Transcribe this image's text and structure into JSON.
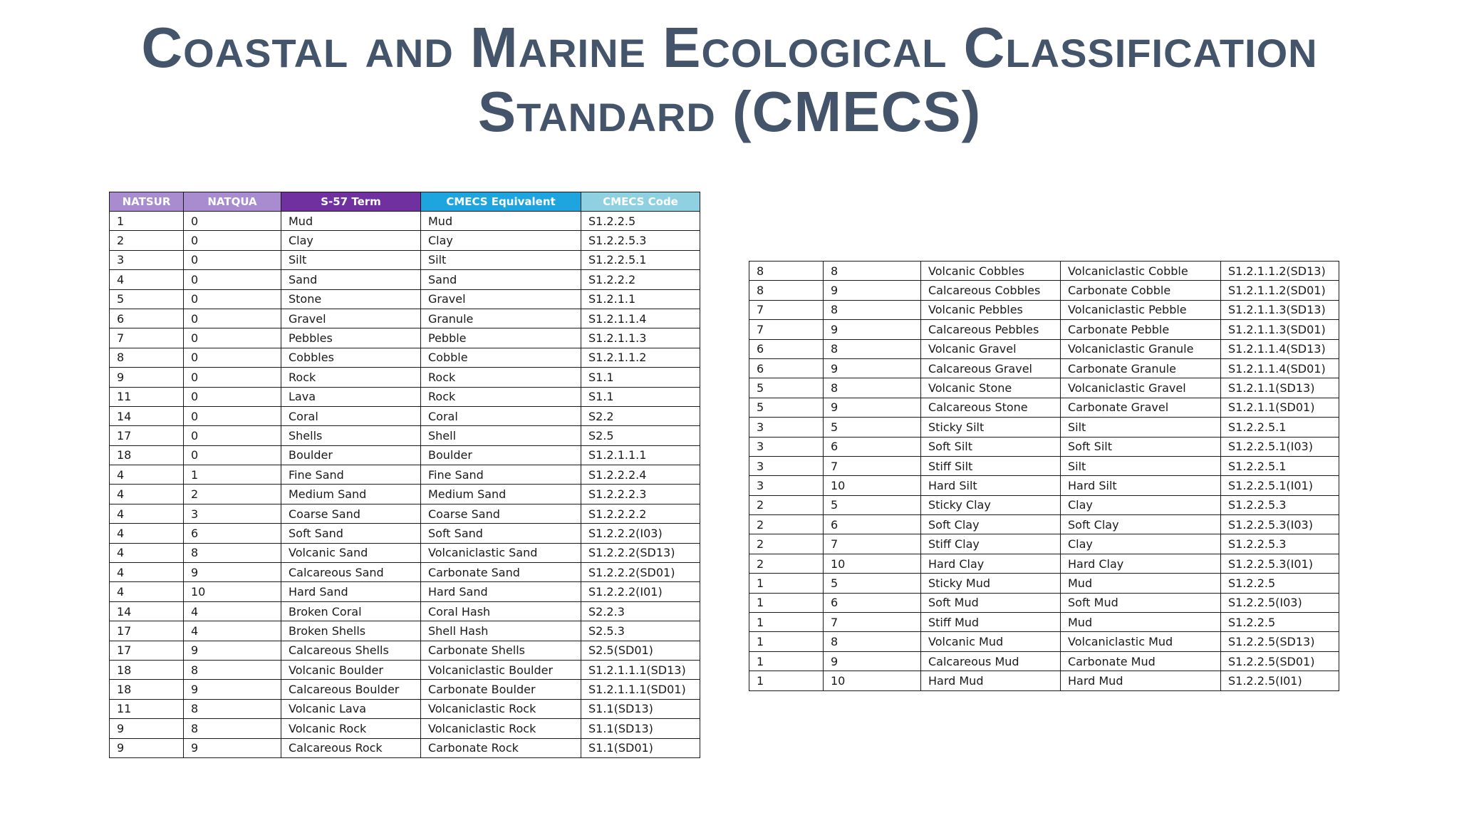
{
  "title": {
    "line1": "Coastal and Marine Ecological Classification",
    "line2": "Standard (CMECS)"
  },
  "colors": {
    "title": "#44546a",
    "header_natsur": "#a98ccf",
    "header_natqua": "#a98ccf",
    "header_s57": "#7030a0",
    "header_cmecs_equiv": "#1ea5e0",
    "header_cmecs_code": "#8fd1e0"
  },
  "left_table": {
    "headers": [
      "NATSUR",
      "NATQUA",
      "S-57 Term",
      "CMECS Equivalent",
      "CMECS Code"
    ],
    "rows": [
      [
        "1",
        "0",
        "Mud",
        "Mud",
        "S1.2.2.5"
      ],
      [
        "2",
        "0",
        "Clay",
        "Clay",
        "S1.2.2.5.3"
      ],
      [
        "3",
        "0",
        "Silt",
        "Silt",
        "S1.2.2.5.1"
      ],
      [
        "4",
        "0",
        "Sand",
        "Sand",
        "S1.2.2.2"
      ],
      [
        "5",
        "0",
        "Stone",
        "Gravel",
        "S1.2.1.1"
      ],
      [
        "6",
        "0",
        "Gravel",
        "Granule",
        "S1.2.1.1.4"
      ],
      [
        "7",
        "0",
        "Pebbles",
        "Pebble",
        "S1.2.1.1.3"
      ],
      [
        "8",
        "0",
        "Cobbles",
        "Cobble",
        "S1.2.1.1.2"
      ],
      [
        "9",
        "0",
        "Rock",
        "Rock",
        "S1.1"
      ],
      [
        "11",
        "0",
        "Lava",
        "Rock",
        "S1.1"
      ],
      [
        "14",
        "0",
        "Coral",
        "Coral",
        "S2.2"
      ],
      [
        "17",
        "0",
        "Shells",
        "Shell",
        "S2.5"
      ],
      [
        "18",
        "0",
        "Boulder",
        "Boulder",
        "S1.2.1.1.1"
      ],
      [
        "4",
        "1",
        "Fine Sand",
        "Fine Sand",
        "S1.2.2.2.4"
      ],
      [
        "4",
        "2",
        "Medium Sand",
        "Medium Sand",
        "S1.2.2.2.3"
      ],
      [
        "4",
        "3",
        "Coarse Sand",
        "Coarse Sand",
        "S1.2.2.2.2"
      ],
      [
        "4",
        "6",
        "Soft Sand",
        "Soft Sand",
        "S1.2.2.2(I03)"
      ],
      [
        "4",
        "8",
        "Volcanic Sand",
        "Volcaniclastic Sand",
        "S1.2.2.2(SD13)"
      ],
      [
        "4",
        "9",
        "Calcareous Sand",
        "Carbonate Sand",
        "S1.2.2.2(SD01)"
      ],
      [
        "4",
        "10",
        "Hard Sand",
        "Hard Sand",
        "S1.2.2.2(I01)"
      ],
      [
        "14",
        "4",
        "Broken Coral",
        "Coral Hash",
        "S2.2.3"
      ],
      [
        "17",
        "4",
        "Broken Shells",
        "Shell Hash",
        "S2.5.3"
      ],
      [
        "17",
        "9",
        "Calcareous Shells",
        "Carbonate Shells",
        "S2.5(SD01)"
      ],
      [
        "18",
        "8",
        "Volcanic Boulder",
        "Volcaniclastic Boulder",
        "S1.2.1.1.1(SD13)"
      ],
      [
        "18",
        "9",
        "Calcareous Boulder",
        "Carbonate Boulder",
        "S1.2.1.1.1(SD01)"
      ],
      [
        "11",
        "8",
        "Volcanic Lava",
        "Volcaniclastic Rock",
        "S1.1(SD13)"
      ],
      [
        "9",
        "8",
        "Volcanic Rock",
        "Volcaniclastic Rock",
        "S1.1(SD13)"
      ],
      [
        "9",
        "9",
        "Calcareous Rock",
        "Carbonate Rock",
        "S1.1(SD01)"
      ]
    ]
  },
  "right_table": {
    "rows": [
      [
        "8",
        "8",
        "Volcanic Cobbles",
        "Volcaniclastic Cobble",
        "S1.2.1.1.2(SD13)"
      ],
      [
        "8",
        "9",
        "Calcareous Cobbles",
        "Carbonate Cobble",
        "S1.2.1.1.2(SD01)"
      ],
      [
        "7",
        "8",
        "Volcanic Pebbles",
        "Volcaniclastic Pebble",
        "S1.2.1.1.3(SD13)"
      ],
      [
        "7",
        "9",
        "Calcareous Pebbles",
        "Carbonate Pebble",
        "S1.2.1.1.3(SD01)"
      ],
      [
        "6",
        "8",
        "Volcanic Gravel",
        "Volcaniclastic Granule",
        "S1.2.1.1.4(SD13)"
      ],
      [
        "6",
        "9",
        "Calcareous Gravel",
        "Carbonate Granule",
        "S1.2.1.1.4(SD01)"
      ],
      [
        "5",
        "8",
        "Volcanic Stone",
        "Volcaniclastic Gravel",
        "S1.2.1.1(SD13)"
      ],
      [
        "5",
        "9",
        "Calcareous Stone",
        "Carbonate Gravel",
        "S1.2.1.1(SD01)"
      ],
      [
        "3",
        "5",
        "Sticky Silt",
        "Silt",
        "S1.2.2.5.1"
      ],
      [
        "3",
        "6",
        "Soft Silt",
        "Soft Silt",
        "S1.2.2.5.1(I03)"
      ],
      [
        "3",
        "7",
        "Stiff Silt",
        "Silt",
        "S1.2.2.5.1"
      ],
      [
        "3",
        "10",
        "Hard Silt",
        "Hard Silt",
        "S1.2.2.5.1(I01)"
      ],
      [
        "2",
        "5",
        "Sticky Clay",
        "Clay",
        "S1.2.2.5.3"
      ],
      [
        "2",
        "6",
        "Soft Clay",
        "Soft Clay",
        "S1.2.2.5.3(I03)"
      ],
      [
        "2",
        "7",
        "Stiff Clay",
        "Clay",
        "S1.2.2.5.3"
      ],
      [
        "2",
        "10",
        "Hard Clay",
        "Hard Clay",
        "S1.2.2.5.3(I01)"
      ],
      [
        "1",
        "5",
        "Sticky Mud",
        "Mud",
        "S1.2.2.5"
      ],
      [
        "1",
        "6",
        "Soft Mud",
        "Soft Mud",
        "S1.2.2.5(I03)"
      ],
      [
        "1",
        "7",
        "Stiff Mud",
        "Mud",
        "S1.2.2.5"
      ],
      [
        "1",
        "8",
        "Volcanic Mud",
        "Volcaniclastic Mud",
        "S1.2.2.5(SD13)"
      ],
      [
        "1",
        "9",
        "Calcareous Mud",
        "Carbonate Mud",
        "S1.2.2.5(SD01)"
      ],
      [
        "1",
        "10",
        "Hard Mud",
        "Hard Mud",
        "S1.2.2.5(I01)"
      ]
    ]
  }
}
